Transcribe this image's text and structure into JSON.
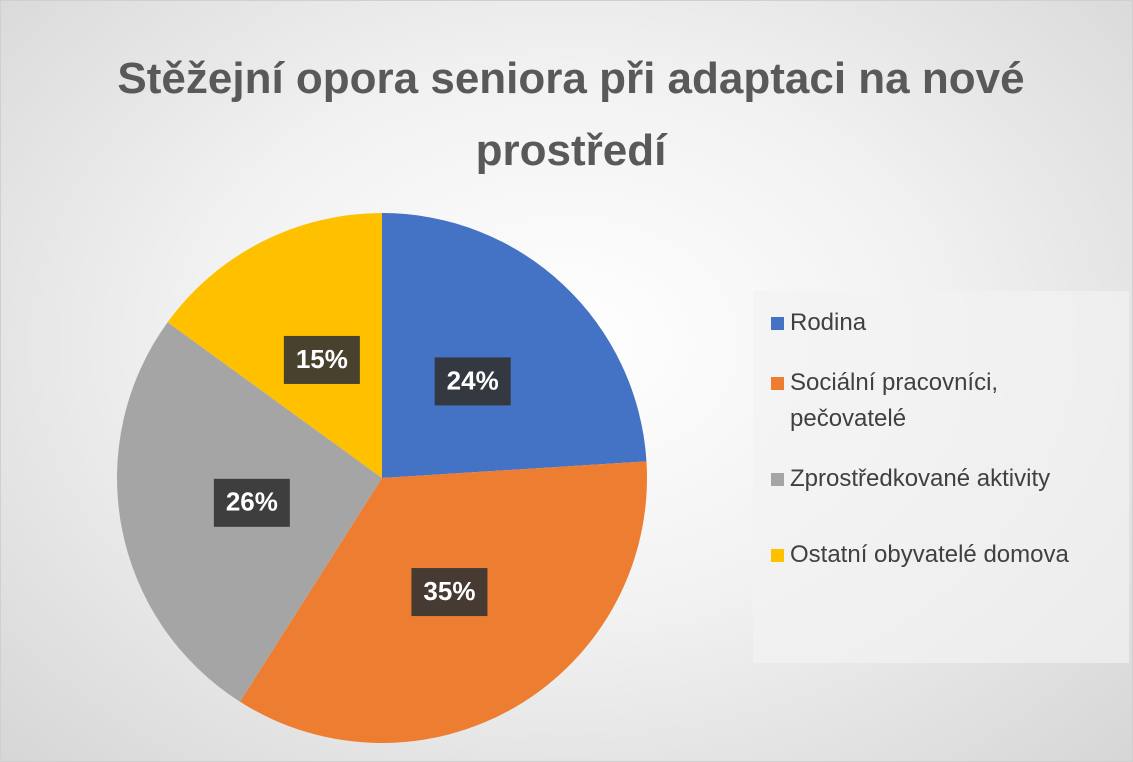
{
  "chart_data": {
    "type": "pie",
    "title": "Stěžejní opora seniora při adaptaci na nové prostředí",
    "categories": [
      "Rodina",
      "Sociální pracovníci, pečovatelé",
      "Zprostředkované aktivity",
      "Ostatní obyvatelé domova"
    ],
    "values": [
      24,
      35,
      26,
      15
    ],
    "value_labels": [
      "24%",
      "35%",
      "26%",
      "15%"
    ],
    "colors": [
      "#4472c4",
      "#ed7d31",
      "#a5a5a5",
      "#ffc000"
    ],
    "legend": "right"
  }
}
